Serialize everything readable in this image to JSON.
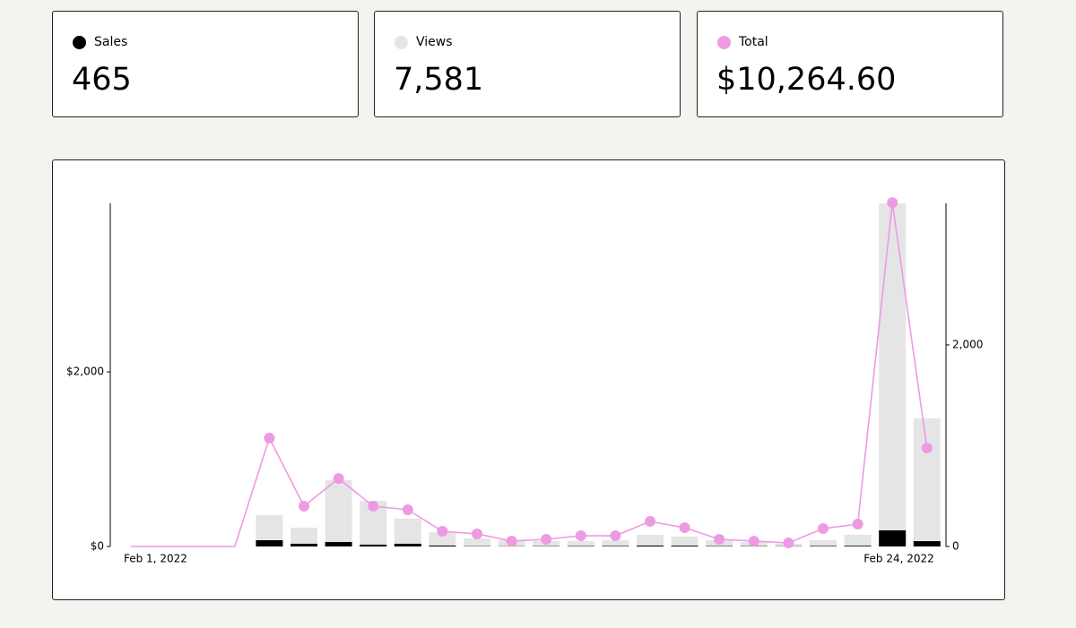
{
  "summary": [
    "465",
    "7,581",
    "$10,264.60"
  ],
  "chart_data": {
    "type": "combo",
    "categories": [
      "Feb 1, 2022",
      null,
      null,
      null,
      null,
      null,
      null,
      null,
      null,
      null,
      null,
      null,
      null,
      null,
      null,
      null,
      null,
      null,
      null,
      null,
      null,
      null,
      null,
      "Feb 24, 2022"
    ],
    "series": [
      {
        "name": "Sales",
        "color": "#000000",
        "kind": "bar",
        "axis": "y2",
        "values": [
          0,
          0,
          0,
          0,
          62,
          27,
          44,
          18,
          27,
          9,
          3,
          2,
          3,
          4,
          5,
          9,
          8,
          4,
          3,
          2,
          5,
          7,
          160,
          53
        ]
      },
      {
        "name": "Views",
        "color": "#e5e5e5",
        "kind": "bar",
        "axis": "y2",
        "values": [
          0,
          0,
          0,
          0,
          311,
          187,
          658,
          453,
          276,
          142,
          80,
          62,
          53,
          53,
          62,
          116,
          98,
          62,
          44,
          27,
          62,
          116,
          3404,
          1271
        ]
      },
      {
        "name": "Total",
        "color": "#ee9ae3",
        "kind": "line",
        "axis": "y",
        "values": [
          0,
          0,
          0,
          0,
          1241,
          462,
          779,
          462,
          421,
          174,
          144,
          62,
          82,
          123,
          123,
          287,
          215,
          82,
          62,
          41,
          205,
          256,
          3938,
          1128
        ]
      }
    ],
    "ylim": [
      0,
      3930
    ],
    "yticks": [
      {
        "value": 0,
        "label": "$0"
      },
      {
        "value": 2000,
        "label": "$2,000"
      }
    ],
    "y2lim": [
      0,
      3404
    ],
    "y2ticks": [
      0,
      {
        "value": 2000,
        "label": "2,000"
      }
    ]
  }
}
